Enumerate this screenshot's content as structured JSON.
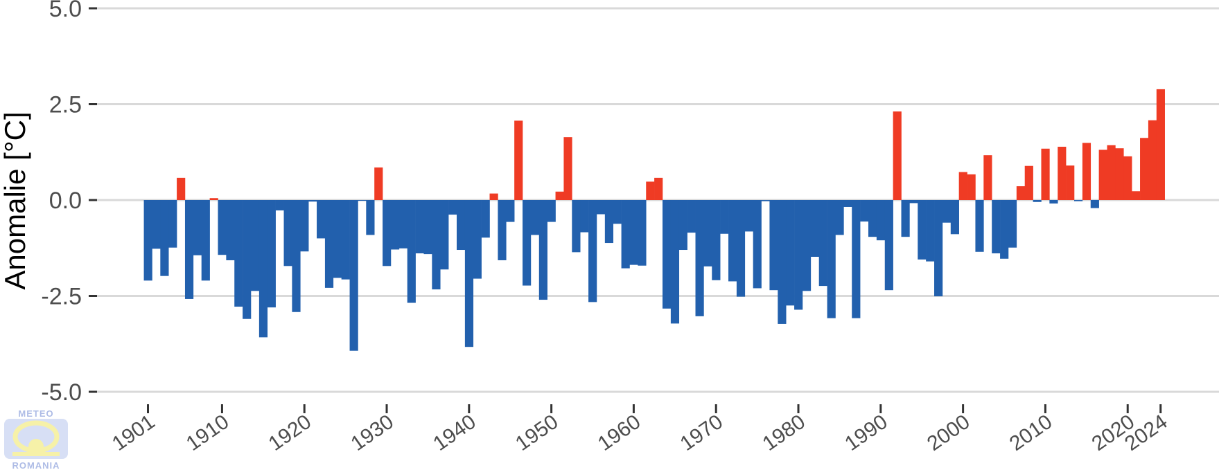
{
  "chart_data": {
    "type": "bar",
    "ylabel": "Anomalie [°C]",
    "xlabel": "",
    "ylim": [
      -5.0,
      5.0
    ],
    "yticks": [
      5.0,
      2.5,
      0.0,
      -2.5,
      -5.0
    ],
    "ytick_labels": [
      "5.0",
      "2.5",
      "0.0",
      "-2.5",
      "-5.0"
    ],
    "xticks": [
      1901,
      1910,
      1920,
      1930,
      1940,
      1950,
      1960,
      1970,
      1980,
      1990,
      2000,
      2010,
      2020,
      2024
    ],
    "grid": "horizontal",
    "colors": {
      "positive": "#ef3b24",
      "negative": "#2260ad"
    },
    "x_start": 1901,
    "values": [
      -2.1,
      -1.27,
      -1.98,
      -1.24,
      0.58,
      -2.58,
      -1.44,
      -2.1,
      0.05,
      -1.43,
      -1.57,
      -2.78,
      -3.1,
      -2.37,
      -3.58,
      -2.8,
      -0.27,
      -1.72,
      -2.92,
      -1.34,
      -0.04,
      -1.0,
      -2.29,
      -2.03,
      -2.07,
      -3.93,
      -0.02,
      -0.91,
      0.85,
      -1.72,
      -1.29,
      -1.26,
      -2.68,
      -1.39,
      -1.41,
      -2.33,
      -1.81,
      -0.38,
      -1.3,
      -3.83,
      -2.05,
      -0.98,
      0.17,
      -1.57,
      -0.57,
      2.07,
      -2.23,
      -0.91,
      -2.6,
      -0.57,
      0.22,
      1.64,
      -1.36,
      -0.84,
      -2.66,
      -0.37,
      -1.12,
      -0.62,
      -1.78,
      -1.69,
      -1.71,
      0.48,
      0.58,
      -2.83,
      -3.22,
      -1.3,
      -0.85,
      -3.03,
      -1.73,
      -2.09,
      -0.88,
      -2.12,
      -2.52,
      -0.82,
      -2.3,
      -0.03,
      -2.35,
      -3.23,
      -2.75,
      -2.86,
      -2.37,
      -1.48,
      -2.24,
      -3.08,
      -0.91,
      -0.18,
      -3.08,
      -0.56,
      -0.96,
      -1.05,
      -2.35,
      2.31,
      -0.96,
      -0.08,
      -1.55,
      -1.6,
      -2.51,
      -0.59,
      -0.89,
      0.73,
      0.67,
      -1.35,
      1.17,
      -1.39,
      -1.53,
      -1.24,
      0.36,
      0.89,
      -0.05,
      1.34,
      -0.09,
      1.39,
      0.9,
      -0.03,
      1.49,
      -0.21,
      1.31,
      1.43,
      1.35,
      1.14,
      0.23,
      1.62,
      2.08,
      2.89
    ]
  },
  "logo": {
    "top_text": "METEO",
    "bottom_text": "ROMANIA"
  }
}
